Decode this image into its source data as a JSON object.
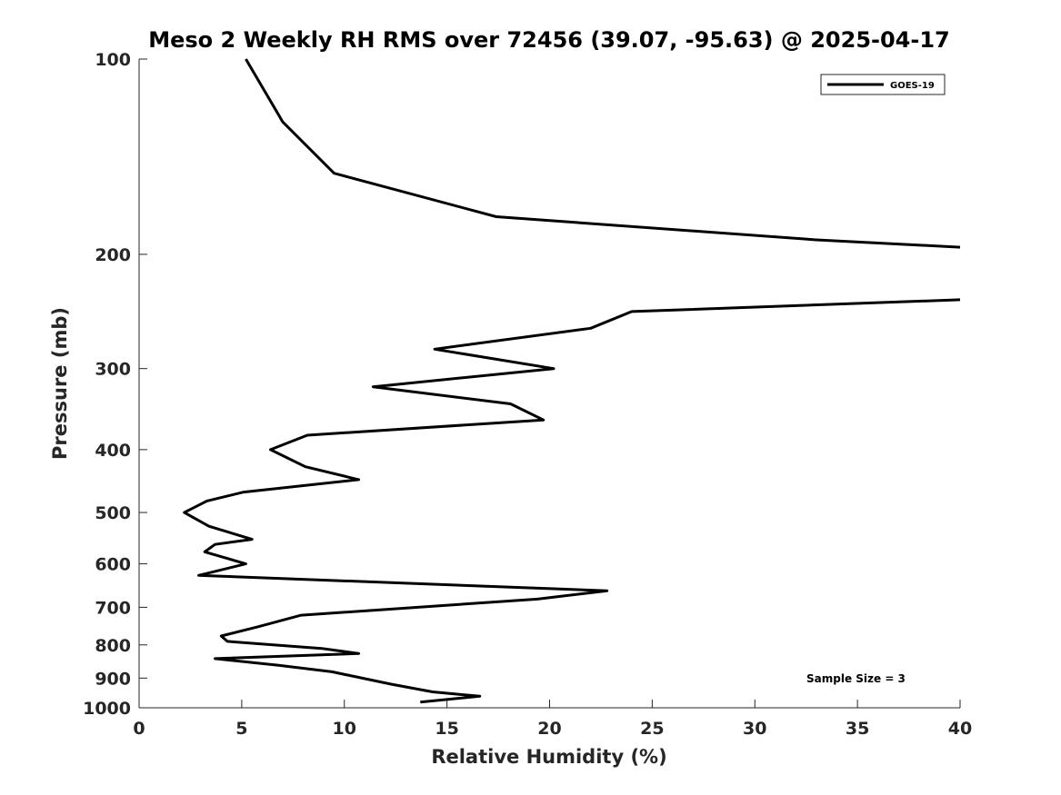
{
  "chart_data": {
    "type": "line",
    "title": "Meso 2 Weekly RH RMS over 72456 (39.07, -95.63) @ 2025-04-17",
    "xlabel": "Relative Humidity (%)",
    "ylabel": "Pressure (mb)",
    "xlim": [
      0,
      40
    ],
    "ylim": [
      100,
      1000
    ],
    "y_scale": "log",
    "y_reversed": true,
    "x_ticks": [
      0,
      5,
      10,
      15,
      20,
      25,
      30,
      35,
      40
    ],
    "y_ticks": [
      100,
      200,
      300,
      400,
      500,
      600,
      700,
      800,
      900,
      1000
    ],
    "grid": false,
    "legend_position": "top-right",
    "annotation": "Sample Size = 3",
    "series": [
      {
        "name": "GOES-19",
        "color": "#000000",
        "segments": [
          [
            {
              "x": 5.2,
              "y": 100
            },
            {
              "x": 7.0,
              "y": 125
            },
            {
              "x": 9.5,
              "y": 150
            },
            {
              "x": 17.4,
              "y": 175
            },
            {
              "x": 33.0,
              "y": 190
            },
            {
              "x": 40.0,
              "y": 195
            }
          ],
          [
            {
              "x": 40.0,
              "y": 235
            },
            {
              "x": 24.0,
              "y": 245
            },
            {
              "x": 22.0,
              "y": 260
            },
            {
              "x": 14.4,
              "y": 280
            },
            {
              "x": 20.2,
              "y": 300
            },
            {
              "x": 11.4,
              "y": 320
            },
            {
              "x": 18.1,
              "y": 340
            },
            {
              "x": 19.7,
              "y": 360
            },
            {
              "x": 8.2,
              "y": 380
            },
            {
              "x": 6.4,
              "y": 400
            },
            {
              "x": 8.1,
              "y": 425
            },
            {
              "x": 10.7,
              "y": 445
            },
            {
              "x": 5.1,
              "y": 465
            },
            {
              "x": 3.3,
              "y": 480
            },
            {
              "x": 2.2,
              "y": 500
            },
            {
              "x": 3.4,
              "y": 525
            },
            {
              "x": 5.5,
              "y": 550
            },
            {
              "x": 3.7,
              "y": 560
            },
            {
              "x": 3.2,
              "y": 575
            },
            {
              "x": 5.2,
              "y": 600
            },
            {
              "x": 2.9,
              "y": 625
            },
            {
              "x": 22.8,
              "y": 660
            },
            {
              "x": 19.4,
              "y": 680
            },
            {
              "x": 7.9,
              "y": 720
            },
            {
              "x": 5.8,
              "y": 750
            },
            {
              "x": 4.0,
              "y": 775
            },
            {
              "x": 4.3,
              "y": 790
            },
            {
              "x": 8.9,
              "y": 810
            },
            {
              "x": 10.7,
              "y": 825
            },
            {
              "x": 3.7,
              "y": 840
            },
            {
              "x": 6.8,
              "y": 860
            },
            {
              "x": 9.4,
              "y": 880
            },
            {
              "x": 12.3,
              "y": 920
            },
            {
              "x": 14.3,
              "y": 945
            },
            {
              "x": 16.6,
              "y": 960
            },
            {
              "x": 13.7,
              "y": 980
            }
          ]
        ]
      }
    ]
  }
}
